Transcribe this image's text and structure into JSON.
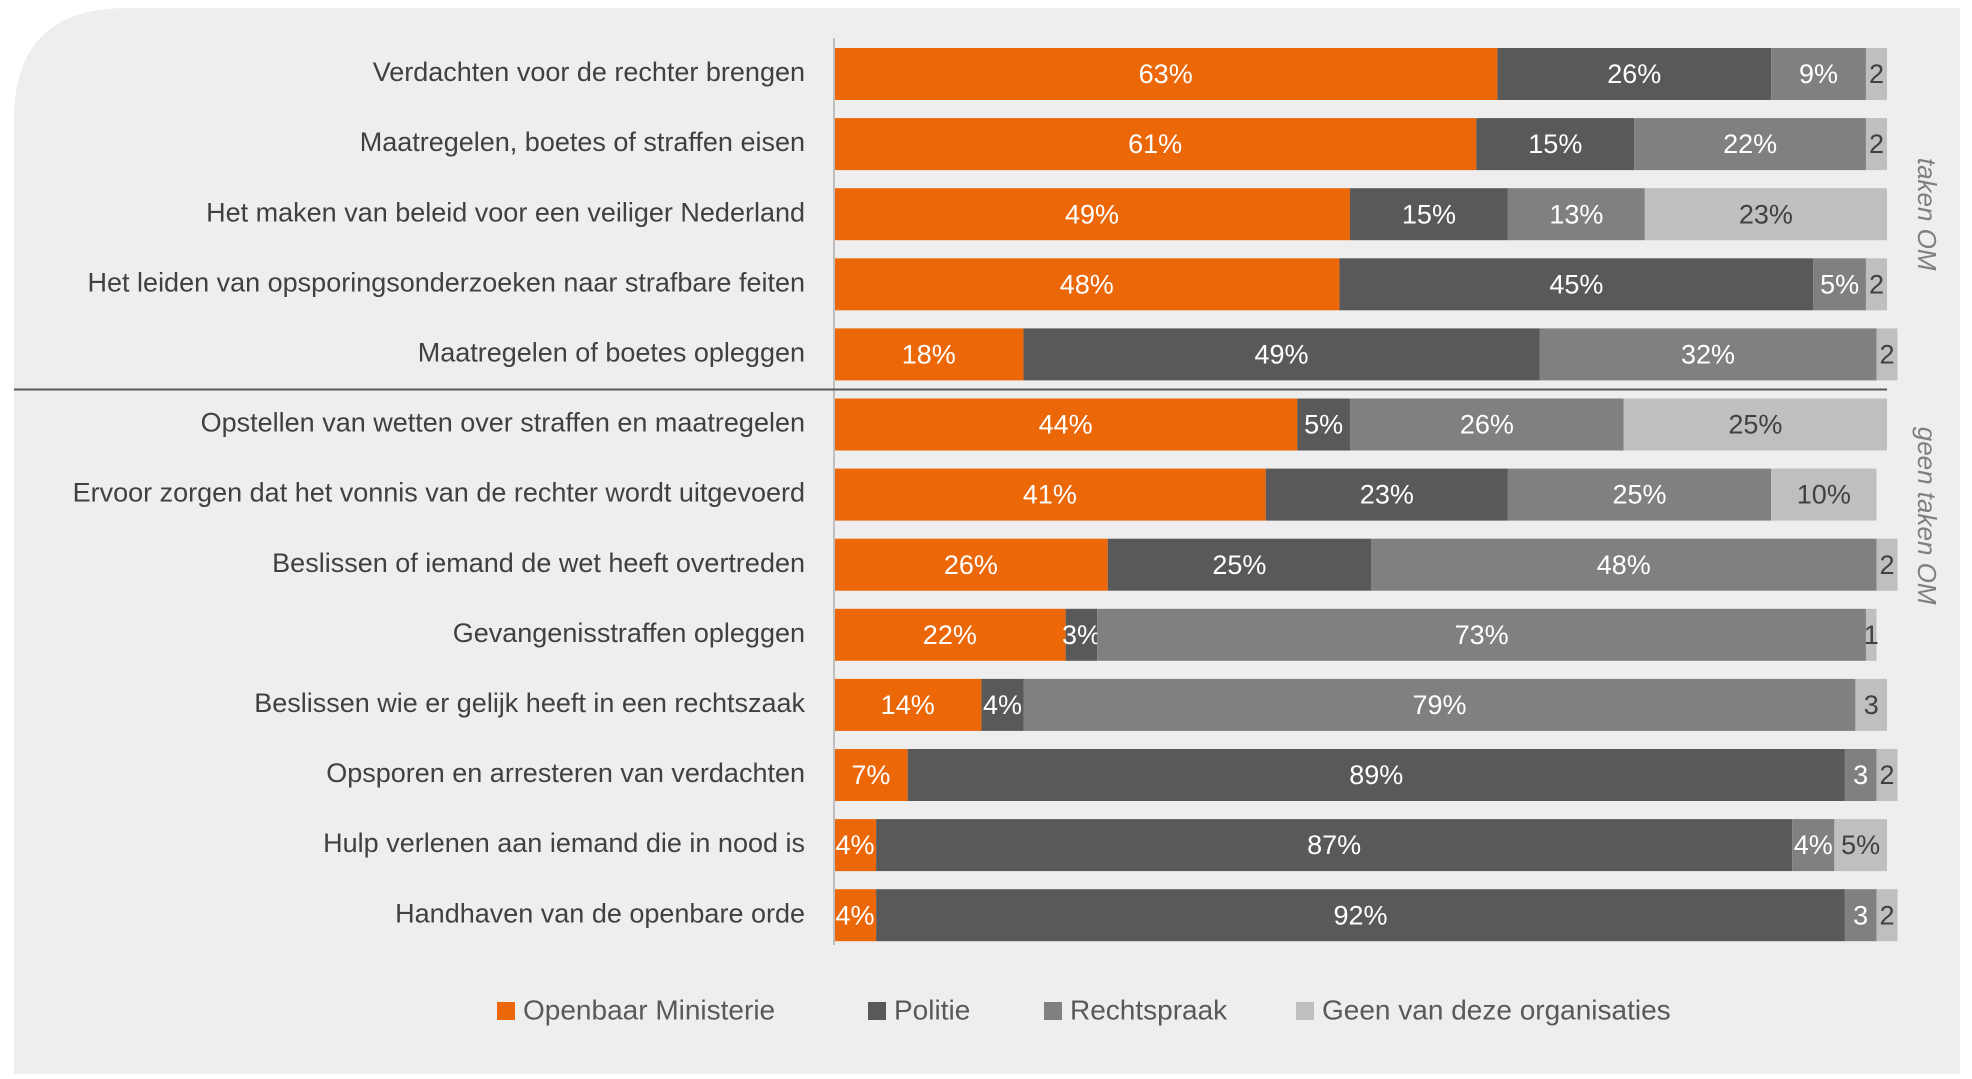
{
  "chart_data": {
    "type": "stacked-bar",
    "orientation": "horizontal",
    "categories": [
      "Verdachten voor de rechter brengen",
      "Maatregelen, boetes of straffen eisen",
      "Het maken van beleid voor een veiliger Nederland",
      "Het leiden van opsporingsonderzoeken naar strafbare feiten",
      "Maatregelen of boetes opleggen",
      "Opstellen van wetten over straffen en maatregelen",
      "Ervoor zorgen dat het vonnis van de rechter wordt uitgevoerd",
      "Beslissen of iemand de wet heeft overtreden",
      "Gevangenisstraffen opleggen",
      "Beslissen wie er gelijk heeft in een rechtszaak",
      "Opsporen en arresteren van verdachten",
      "Hulp verlenen aan iemand die in nood is",
      "Handhaven van de openbare orde"
    ],
    "series": [
      {
        "name": "Openbaar Ministerie",
        "color": "#ec6707",
        "values": [
          63,
          61,
          49,
          48,
          18,
          44,
          41,
          26,
          22,
          14,
          7,
          4,
          4
        ],
        "value_labels": [
          "63%",
          "61%",
          "49%",
          "48%",
          "18%",
          "44%",
          "41%",
          "26%",
          "22%",
          "14%",
          "7%",
          "4%",
          "4%"
        ]
      },
      {
        "name": "Politie",
        "color": "#595959",
        "values": [
          26,
          15,
          15,
          45,
          49,
          5,
          23,
          25,
          3,
          4,
          89,
          87,
          92
        ],
        "value_labels": [
          "26%",
          "15%",
          "15%",
          "45%",
          "49%",
          "5%",
          "23%",
          "25%",
          "3%",
          "4%",
          "89%",
          "87%",
          "92%"
        ]
      },
      {
        "name": "Rechtspraak",
        "color": "#808080",
        "values": [
          9,
          22,
          13,
          5,
          32,
          26,
          25,
          48,
          73,
          79,
          3,
          4,
          3
        ],
        "value_labels": [
          "9%",
          "22%",
          "13%",
          "5%",
          "32%",
          "26%",
          "25%",
          "48%",
          "73%",
          "79%",
          "3",
          "4%",
          "3"
        ]
      },
      {
        "name": "Geen van deze organisaties",
        "color": "#bfbfbf",
        "values": [
          2,
          2,
          23,
          2,
          2,
          25,
          10,
          2,
          1,
          3,
          2,
          5,
          2
        ],
        "value_labels": [
          "2",
          "2",
          "23%",
          "2",
          "2",
          "25%",
          "10%",
          "2",
          "1",
          "3",
          "2",
          "5%",
          "2"
        ]
      }
    ],
    "xlim": [
      0,
      100
    ],
    "annotations": [
      "taken OM",
      "geen taken OM"
    ]
  }
}
